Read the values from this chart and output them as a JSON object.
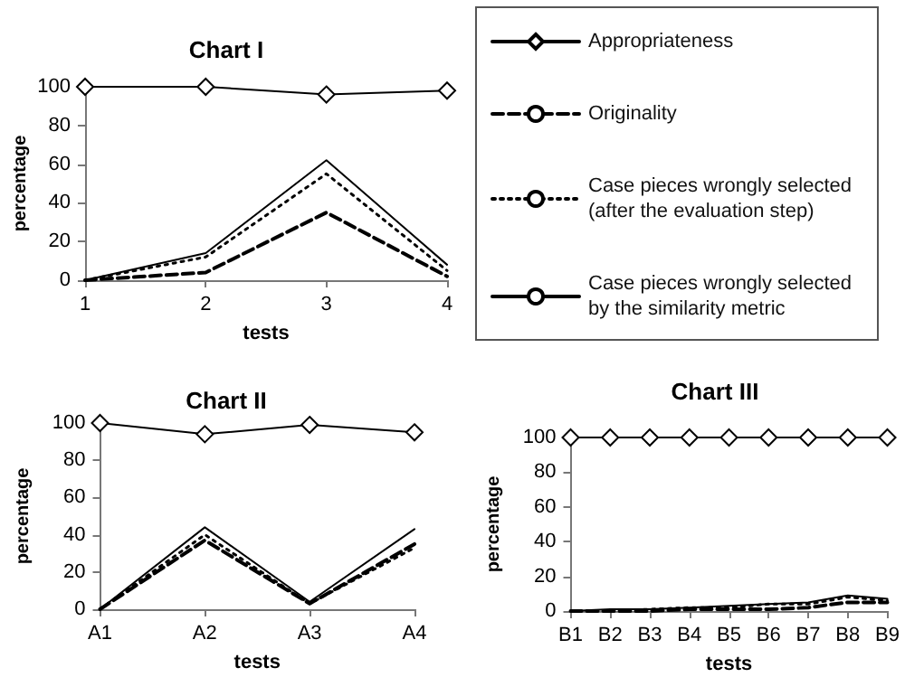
{
  "chart_data": [
    {
      "type": "line",
      "title": "Chart I",
      "xlabel": "tests",
      "ylabel": "percentage",
      "categories": [
        "1",
        "2",
        "3",
        "4"
      ],
      "ylim": [
        0,
        100
      ],
      "yticks": [
        0,
        20,
        40,
        60,
        80,
        100
      ],
      "legend": "right",
      "series": [
        {
          "name": "Appropriateness",
          "color": "#000000",
          "marker": "diamond",
          "line_style": "solid",
          "values": [
            100,
            100,
            96,
            98
          ]
        },
        {
          "name": "Originality",
          "color": "#000000",
          "marker": "none",
          "line_style": "dashed",
          "values": [
            0,
            4,
            35,
            2
          ]
        },
        {
          "name": "Case pieces wrongly selected (after the evaluation step)",
          "color": "#000000",
          "marker": "none",
          "line_style": "dotted",
          "values": [
            0,
            12,
            55,
            5
          ]
        },
        {
          "name": "Case pieces wrongly selected by the similarity metric",
          "color": "#000000",
          "marker": "none",
          "line_style": "solid",
          "values": [
            0,
            14,
            62,
            8
          ]
        }
      ]
    },
    {
      "type": "line",
      "title": "Chart II",
      "xlabel": "tests",
      "ylabel": "percentage",
      "categories": [
        "A1",
        "A2",
        "A3",
        "A4"
      ],
      "ylim": [
        0,
        100
      ],
      "yticks": [
        0,
        20,
        40,
        60,
        80,
        100
      ],
      "series": [
        {
          "color": "#000000",
          "marker": "diamond",
          "line_style": "solid",
          "values": [
            100,
            94,
            99,
            95
          ]
        },
        {
          "color": "#000000",
          "marker": "none",
          "line_style": "dashed",
          "values": [
            0,
            37,
            3,
            35
          ]
        },
        {
          "color": "#000000",
          "marker": "none",
          "line_style": "dotted",
          "values": [
            0,
            40,
            3,
            33
          ]
        },
        {
          "color": "#000000",
          "marker": "none",
          "line_style": "solid",
          "values": [
            0,
            44,
            4,
            43
          ]
        }
      ]
    },
    {
      "type": "line",
      "title": "Chart III",
      "xlabel": "tests",
      "ylabel": "percentage",
      "categories": [
        "B1",
        "B2",
        "B3",
        "B4",
        "B5",
        "B6",
        "B7",
        "B8",
        "B9"
      ],
      "ylim": [
        0,
        100
      ],
      "yticks": [
        0,
        20,
        40,
        60,
        80,
        100
      ],
      "series": [
        {
          "color": "#000000",
          "marker": "diamond",
          "line_style": "solid",
          "values": [
            100,
            100,
            100,
            100,
            100,
            100,
            100,
            100,
            100
          ]
        },
        {
          "color": "#000000",
          "marker": "none",
          "line_style": "dashed",
          "values": [
            0,
            0,
            0,
            1,
            1,
            1,
            2,
            5,
            5
          ]
        },
        {
          "color": "#000000",
          "marker": "none",
          "line_style": "dotted",
          "values": [
            0,
            0,
            1,
            2,
            2,
            4,
            4,
            8,
            6
          ]
        },
        {
          "color": "#000000",
          "marker": "none",
          "line_style": "solid",
          "values": [
            0,
            1,
            1,
            2,
            3,
            4,
            5,
            9,
            7
          ]
        }
      ]
    }
  ]
}
